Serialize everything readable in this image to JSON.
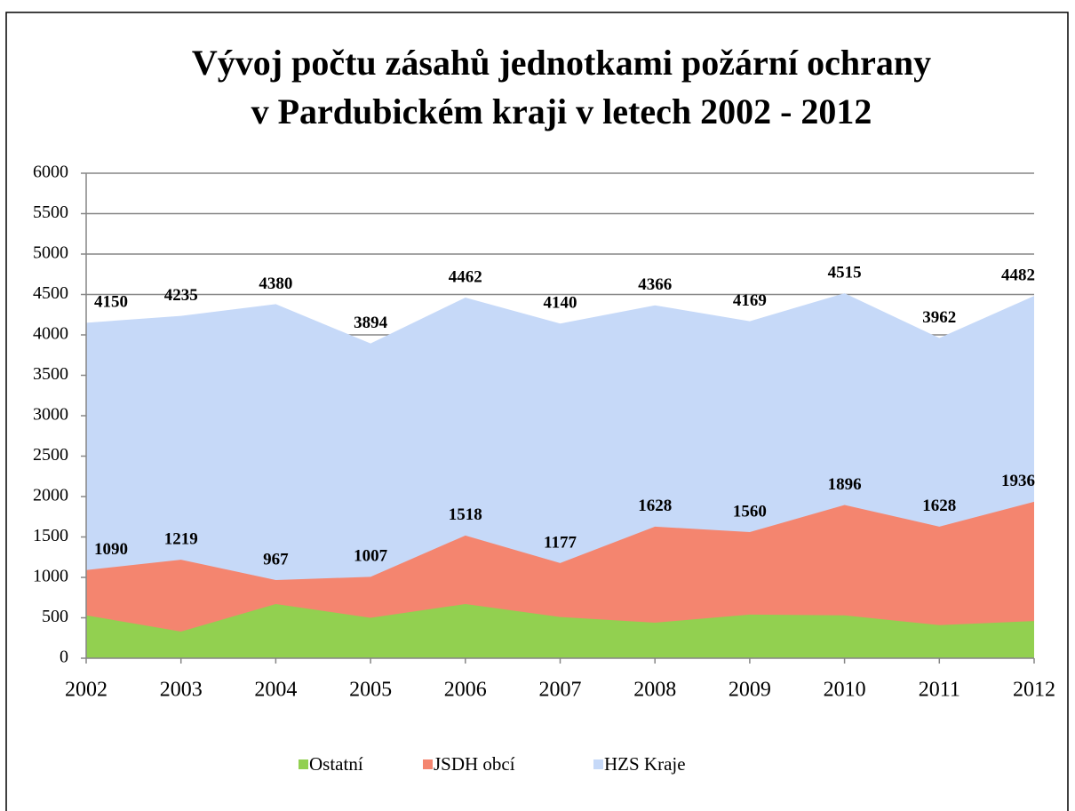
{
  "chart_data": {
    "type": "area",
    "title": [
      "Vývoj počtu zásahů jednotkami požární ochrany",
      "v Pardubickém kraji v letech 2002 - 2012"
    ],
    "categories": [
      "2002",
      "2003",
      "2004",
      "2005",
      "2006",
      "2007",
      "2008",
      "2009",
      "2010",
      "2011",
      "2012"
    ],
    "series": [
      {
        "name": "Ostatní",
        "color": "#92d050",
        "values": [
          530,
          330,
          670,
          500,
          670,
          510,
          440,
          540,
          530,
          410,
          460
        ]
      },
      {
        "name": "JSDH obcí",
        "color": "#f4856f",
        "values": [
          1090,
          1219,
          967,
          1007,
          1518,
          1177,
          1628,
          1560,
          1896,
          1628,
          1936
        ]
      },
      {
        "name": "HZS Kraje",
        "color": "#c6d9f8",
        "values": [
          4150,
          4235,
          4380,
          3894,
          4462,
          4140,
          4366,
          4169,
          4515,
          3962,
          4482
        ]
      }
    ],
    "ylim": [
      0,
      6000
    ],
    "yticks": [
      0,
      500,
      1000,
      1500,
      2000,
      2500,
      3000,
      3500,
      4000,
      4500,
      5000,
      5500,
      6000
    ],
    "grid": true,
    "legend": "bottom"
  }
}
